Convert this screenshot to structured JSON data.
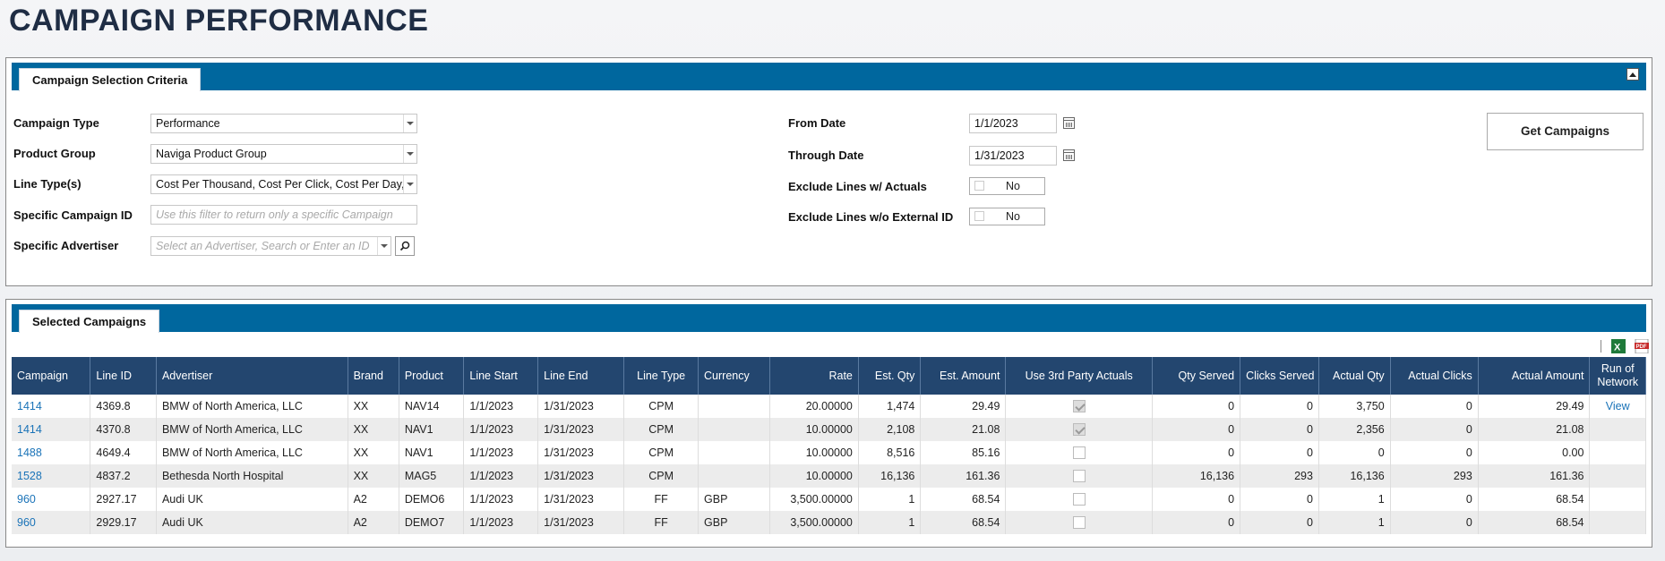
{
  "page": {
    "title": "CAMPAIGN PERFORMANCE"
  },
  "criteria": {
    "tab_label": "Campaign Selection Criteria",
    "campaign_type": {
      "label": "Campaign Type",
      "value": "Performance"
    },
    "product_group": {
      "label": "Product Group",
      "value": "Naviga Product Group"
    },
    "line_types": {
      "label": "Line Type(s)",
      "value": "Cost Per Thousand, Cost Per Click, Cost Per Day, "
    },
    "specific_campaign": {
      "label": "Specific Campaign ID",
      "placeholder": "Use this filter to return only a specific Campaign"
    },
    "specific_advertiser": {
      "label": "Specific Advertiser",
      "placeholder": "Select an Advertiser, Search or Enter an ID"
    },
    "from_date": {
      "label": "From Date",
      "value": "1/1/2023"
    },
    "through_date": {
      "label": "Through Date",
      "value": "1/31/2023"
    },
    "exclude_actuals": {
      "label": "Exclude Lines w/ Actuals",
      "value": "No"
    },
    "exclude_no_external": {
      "label": "Exclude Lines w/o External ID",
      "value": "No"
    },
    "get_button": "Get Campaigns"
  },
  "results": {
    "tab_label": "Selected Campaigns",
    "columns": [
      "Campaign",
      "Line ID",
      "Advertiser",
      "Brand",
      "Product",
      "Line Start",
      "Line End",
      "Line Type",
      "Currency",
      "Rate",
      "Est. Qty",
      "Est. Amount",
      "Use 3rd Party Actuals",
      "Qty Served",
      "Clicks Served",
      "Actual Qty",
      "Actual Clicks",
      "Actual Amount",
      "Run of Network"
    ],
    "rows": [
      {
        "campaign": "1414",
        "line_id": "4369.8",
        "advertiser": "BMW of North America, LLC",
        "brand": "XX",
        "product": "NAV14",
        "line_start": "1/1/2023",
        "line_end": "1/31/2023",
        "line_type": "CPM",
        "currency": "",
        "rate": "20.00000",
        "est_qty": "1,474",
        "est_amount": "29.49",
        "use_3rd": true,
        "qty_served": "0",
        "clicks_served": "0",
        "actual_qty": "3,750",
        "actual_clicks": "0",
        "actual_amount": "29.49",
        "ron": "View"
      },
      {
        "campaign": "1414",
        "line_id": "4370.8",
        "advertiser": "BMW of North America, LLC",
        "brand": "XX",
        "product": "NAV1",
        "line_start": "1/1/2023",
        "line_end": "1/31/2023",
        "line_type": "CPM",
        "currency": "",
        "rate": "10.00000",
        "est_qty": "2,108",
        "est_amount": "21.08",
        "use_3rd": true,
        "qty_served": "0",
        "clicks_served": "0",
        "actual_qty": "2,356",
        "actual_clicks": "0",
        "actual_amount": "21.08",
        "ron": ""
      },
      {
        "campaign": "1488",
        "line_id": "4649.4",
        "advertiser": "BMW of North America, LLC",
        "brand": "XX",
        "product": "NAV1",
        "line_start": "1/1/2023",
        "line_end": "1/31/2023",
        "line_type": "CPM",
        "currency": "",
        "rate": "10.00000",
        "est_qty": "8,516",
        "est_amount": "85.16",
        "use_3rd": false,
        "qty_served": "0",
        "clicks_served": "0",
        "actual_qty": "0",
        "actual_clicks": "0",
        "actual_amount": "0.00",
        "ron": ""
      },
      {
        "campaign": "1528",
        "line_id": "4837.2",
        "advertiser": "Bethesda North Hospital",
        "brand": "XX",
        "product": "MAG5",
        "line_start": "1/1/2023",
        "line_end": "1/31/2023",
        "line_type": "CPM",
        "currency": "",
        "rate": "10.00000",
        "est_qty": "16,136",
        "est_amount": "161.36",
        "use_3rd": false,
        "qty_served": "16,136",
        "clicks_served": "293",
        "actual_qty": "16,136",
        "actual_clicks": "293",
        "actual_amount": "161.36",
        "ron": ""
      },
      {
        "campaign": "960",
        "line_id": "2927.17",
        "advertiser": "Audi UK",
        "brand": "A2",
        "product": "DEMO6",
        "line_start": "1/1/2023",
        "line_end": "1/31/2023",
        "line_type": "FF",
        "currency": "GBP",
        "rate": "3,500.00000",
        "est_qty": "1",
        "est_amount": "68.54",
        "use_3rd": false,
        "qty_served": "0",
        "clicks_served": "0",
        "actual_qty": "1",
        "actual_clicks": "0",
        "actual_amount": "68.54",
        "ron": ""
      },
      {
        "campaign": "960",
        "line_id": "2929.17",
        "advertiser": "Audi UK",
        "brand": "A2",
        "product": "DEMO7",
        "line_start": "1/1/2023",
        "line_end": "1/31/2023",
        "line_type": "FF",
        "currency": "GBP",
        "rate": "3,500.00000",
        "est_qty": "1",
        "est_amount": "68.54",
        "use_3rd": false,
        "qty_served": "0",
        "clicks_served": "0",
        "actual_qty": "1",
        "actual_clicks": "0",
        "actual_amount": "68.54",
        "ron": ""
      }
    ]
  },
  "colors": {
    "header_blue": "#00679e",
    "table_header": "#23466f",
    "link": "#1a73b8"
  },
  "icons": [
    "collapse-icon",
    "calendar-icon",
    "search-icon",
    "dropdown-arrow-icon",
    "excel-icon",
    "pdf-icon"
  ]
}
